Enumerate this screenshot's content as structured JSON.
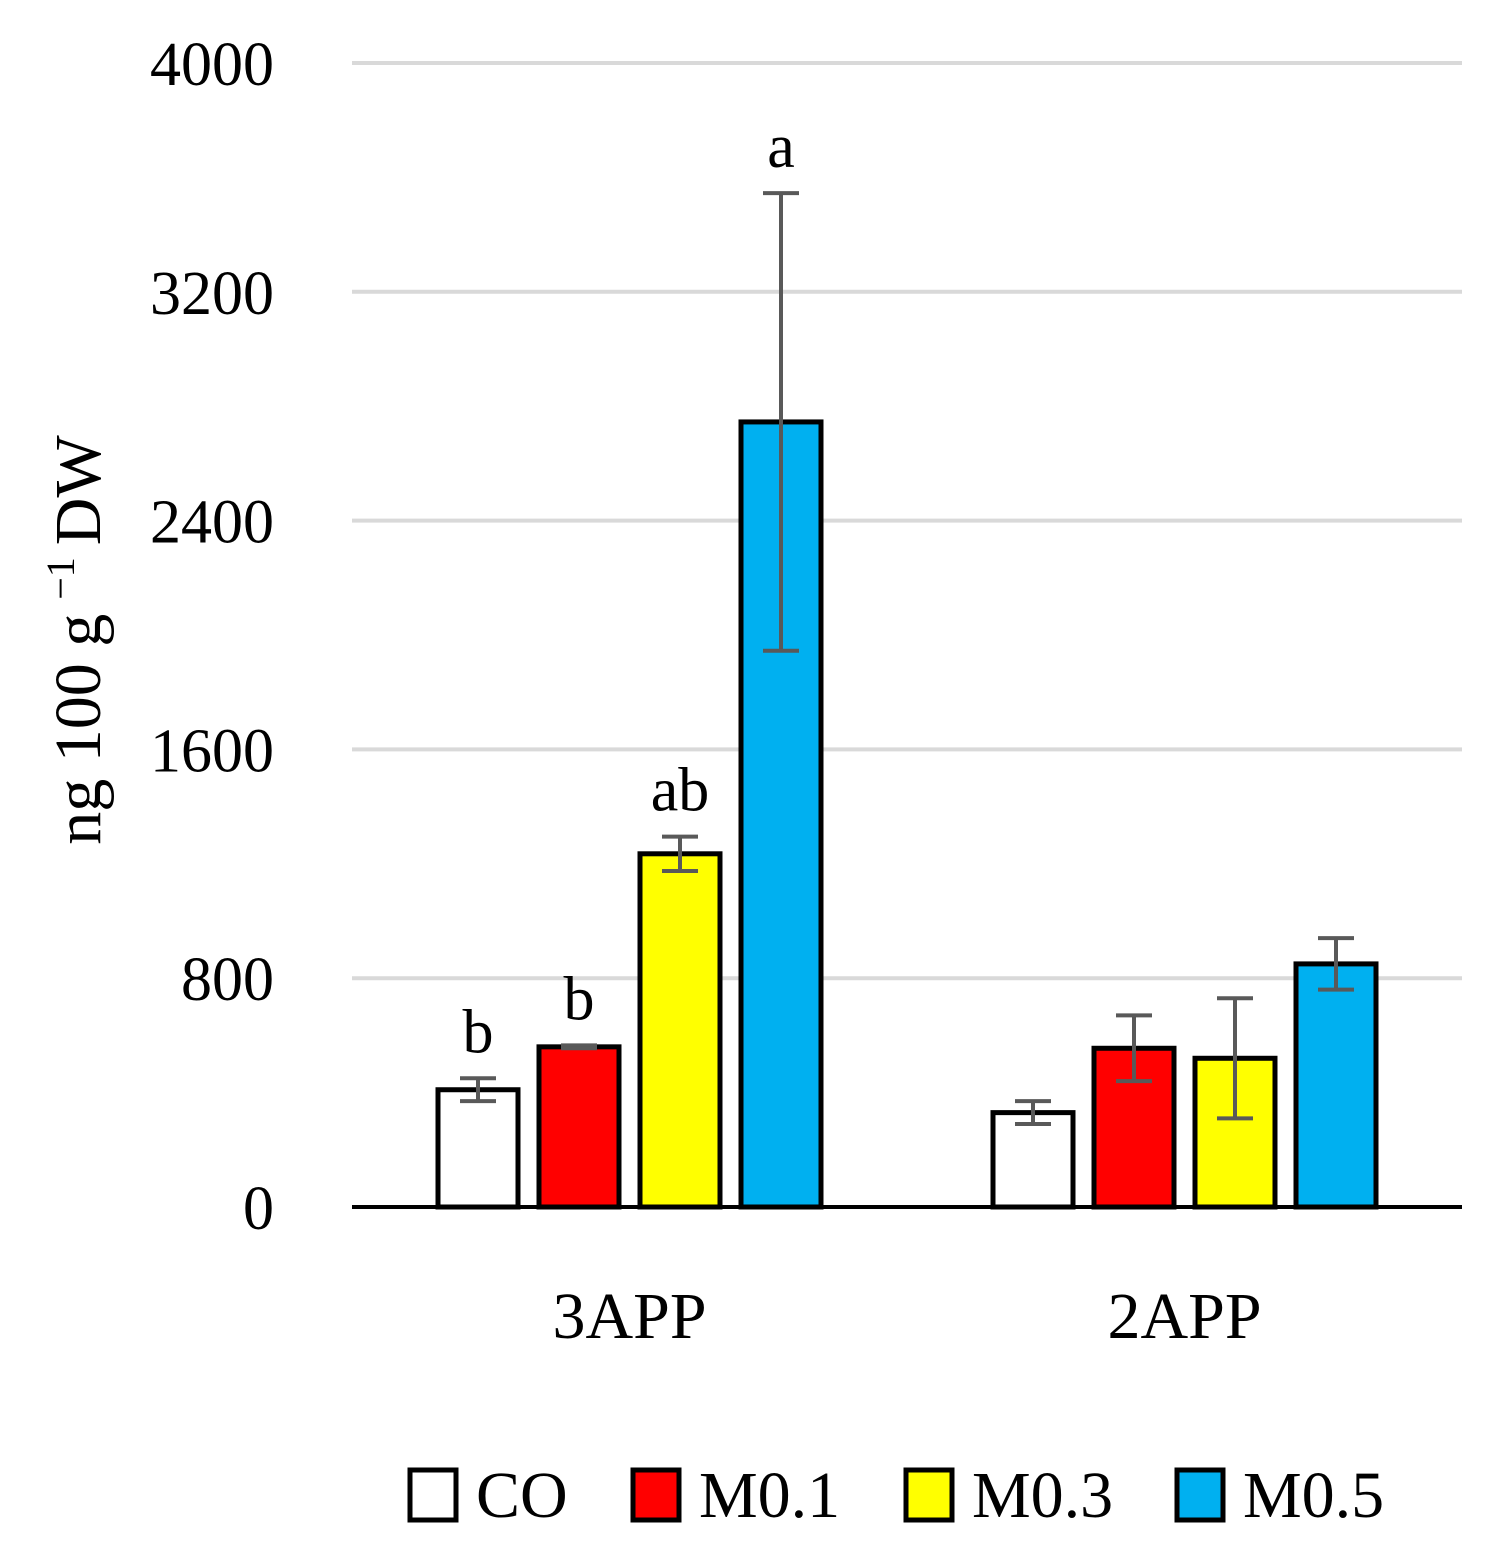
{
  "chart_data": {
    "type": "bar",
    "title": "",
    "xlabel": "",
    "ylabel": "ng 100 g",
    "ylabel_superscript": "−1",
    "ylabel_suffix": "DW",
    "ylim": [
      0,
      4000
    ],
    "yticks": [
      "0",
      "800",
      "1600",
      "2400",
      "3200",
      "4000"
    ],
    "grid": true,
    "legend_position": "bottom",
    "categories": [
      "3APP",
      "2APP"
    ],
    "series": [
      {
        "name": "CO",
        "color": "#ffffff",
        "values": [
          410,
          330
        ],
        "errors": [
          40,
          40
        ],
        "labels": [
          "b",
          ""
        ]
      },
      {
        "name": "M0.1",
        "color": "#ff0000",
        "values": [
          560,
          555
        ],
        "errors": [
          5,
          115
        ],
        "labels": [
          "b",
          ""
        ]
      },
      {
        "name": "M0.3",
        "color": "#ffff00",
        "values": [
          1235,
          520
        ],
        "errors": [
          60,
          210
        ],
        "labels": [
          "ab",
          ""
        ]
      },
      {
        "name": "M0.5",
        "color": "#00b0f0",
        "values": [
          2745,
          850
        ],
        "errors": [
          800,
          90
        ],
        "labels": [
          "a",
          ""
        ]
      }
    ]
  }
}
